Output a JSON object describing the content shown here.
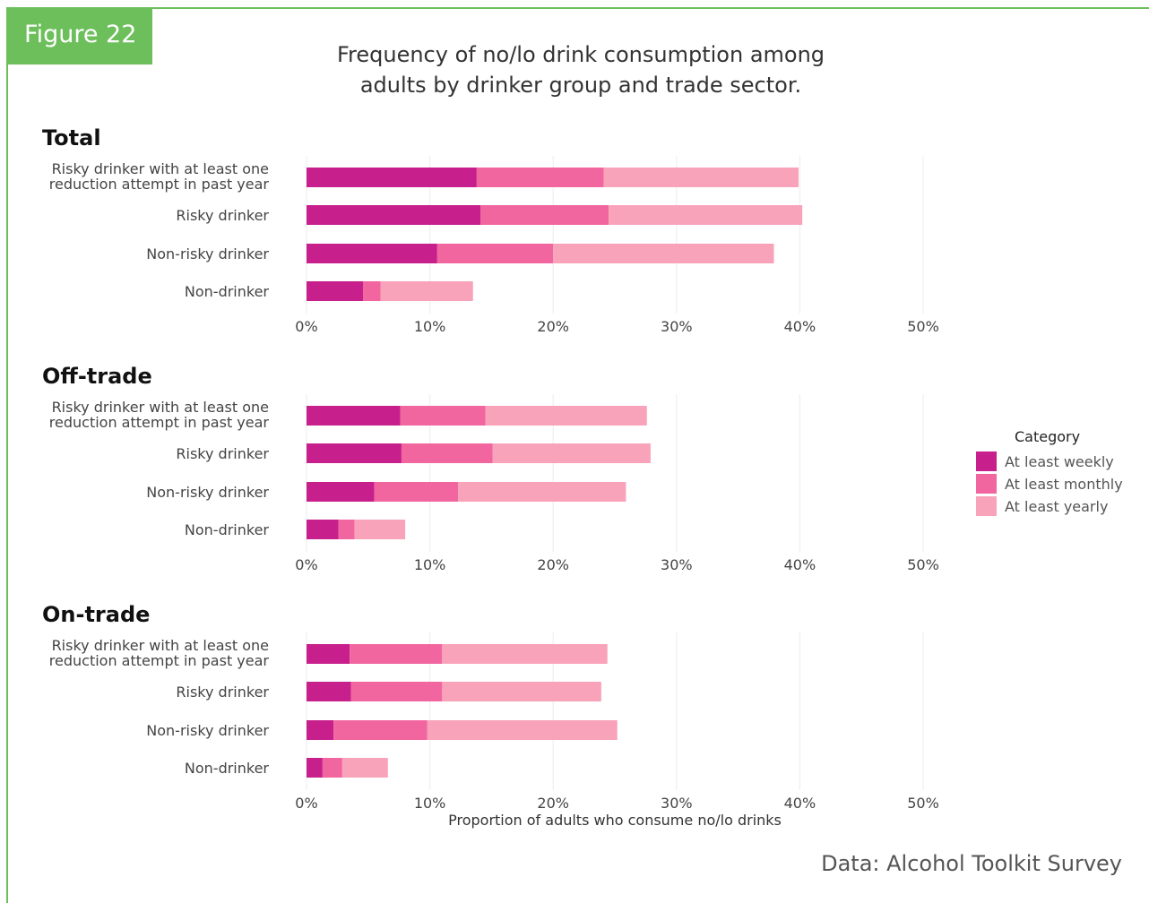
{
  "figure_label": "Figure 22",
  "title_lines": [
    "Frequency of no/lo drink consumption among",
    "adults by drinker group and trade sector."
  ],
  "source": "Data: Alcohol Toolkit Survey",
  "colors": {
    "frame": "#6cbf5b",
    "at_least_weekly": "#c71f8b",
    "at_least_monthly": "#f266a0",
    "at_least_yearly": "#f9a3bb"
  },
  "chart_data": {
    "type": "bar",
    "orientation": "horizontal",
    "stacked": true,
    "xlabel": "Proportion of adults who consume no/lo drinks",
    "x_ticks": [
      "0%",
      "10%",
      "20%",
      "30%",
      "40%",
      "50%"
    ],
    "xlim": [
      0,
      50
    ],
    "grid": "vertical",
    "legend": {
      "title": "Category",
      "position": "right",
      "entries": [
        "At least weekly",
        "At least monthly",
        "At least yearly"
      ]
    },
    "categories": [
      [
        "Risky drinker with at least one",
        "reduction attempt in past year"
      ],
      [
        "Risky drinker"
      ],
      [
        "Non-risky drinker"
      ],
      [
        "Non-drinker"
      ]
    ],
    "panels": [
      {
        "title": "Total",
        "series": [
          {
            "name": "At least weekly",
            "values": [
              13.8,
              14.1,
              10.6,
              4.6
            ]
          },
          {
            "name": "At least monthly",
            "values": [
              10.3,
              10.4,
              9.4,
              1.4
            ]
          },
          {
            "name": "At least yearly",
            "values": [
              15.8,
              15.7,
              17.9,
              7.5
            ]
          }
        ]
      },
      {
        "title": "Off-trade",
        "series": [
          {
            "name": "At least weekly",
            "values": [
              7.6,
              7.7,
              5.5,
              2.6
            ]
          },
          {
            "name": "At least monthly",
            "values": [
              6.9,
              7.4,
              6.8,
              1.3
            ]
          },
          {
            "name": "At least yearly",
            "values": [
              13.1,
              12.8,
              13.6,
              4.1
            ]
          }
        ]
      },
      {
        "title": "On-trade",
        "series": [
          {
            "name": "At least weekly",
            "values": [
              3.5,
              3.6,
              2.2,
              1.3
            ]
          },
          {
            "name": "At least monthly",
            "values": [
              7.5,
              7.4,
              7.6,
              1.6
            ]
          },
          {
            "name": "At least yearly",
            "values": [
              13.4,
              12.9,
              15.4,
              3.7
            ]
          }
        ]
      }
    ]
  }
}
